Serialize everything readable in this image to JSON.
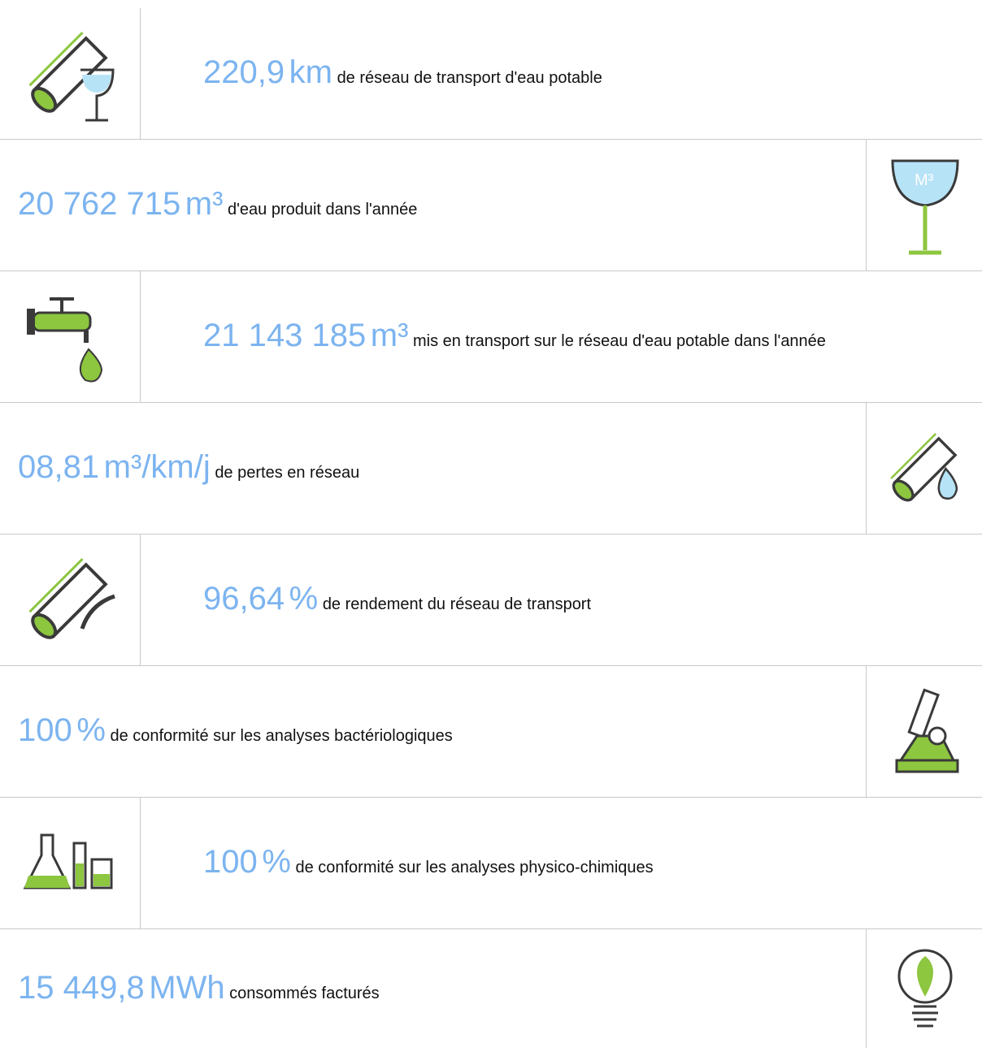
{
  "rows": [
    {
      "value": "220,9",
      "unit": "km",
      "text": "de réseau de transport d'eau potable"
    },
    {
      "value": "20 762 715",
      "unit": "m³",
      "text": "d'eau produit dans l'année"
    },
    {
      "value": "21 143 185",
      "unit": "m³",
      "text": "mis en transport sur le réseau d'eau potable dans l'année"
    },
    {
      "value": "08,81",
      "unit": "m³/km/j",
      "text": "de pertes en réseau"
    },
    {
      "value": "96,64",
      "unit": "%",
      "text": "de rendement du réseau de transport"
    },
    {
      "value": "100",
      "unit": "%",
      "text": "de conformité sur les analyses bactériologiques"
    },
    {
      "value": "100",
      "unit": "%",
      "text": "de conformité sur les analyses physico-chimiques"
    },
    {
      "value": "15 449,8",
      "unit": "MWh",
      "text": "consommés facturés"
    }
  ]
}
